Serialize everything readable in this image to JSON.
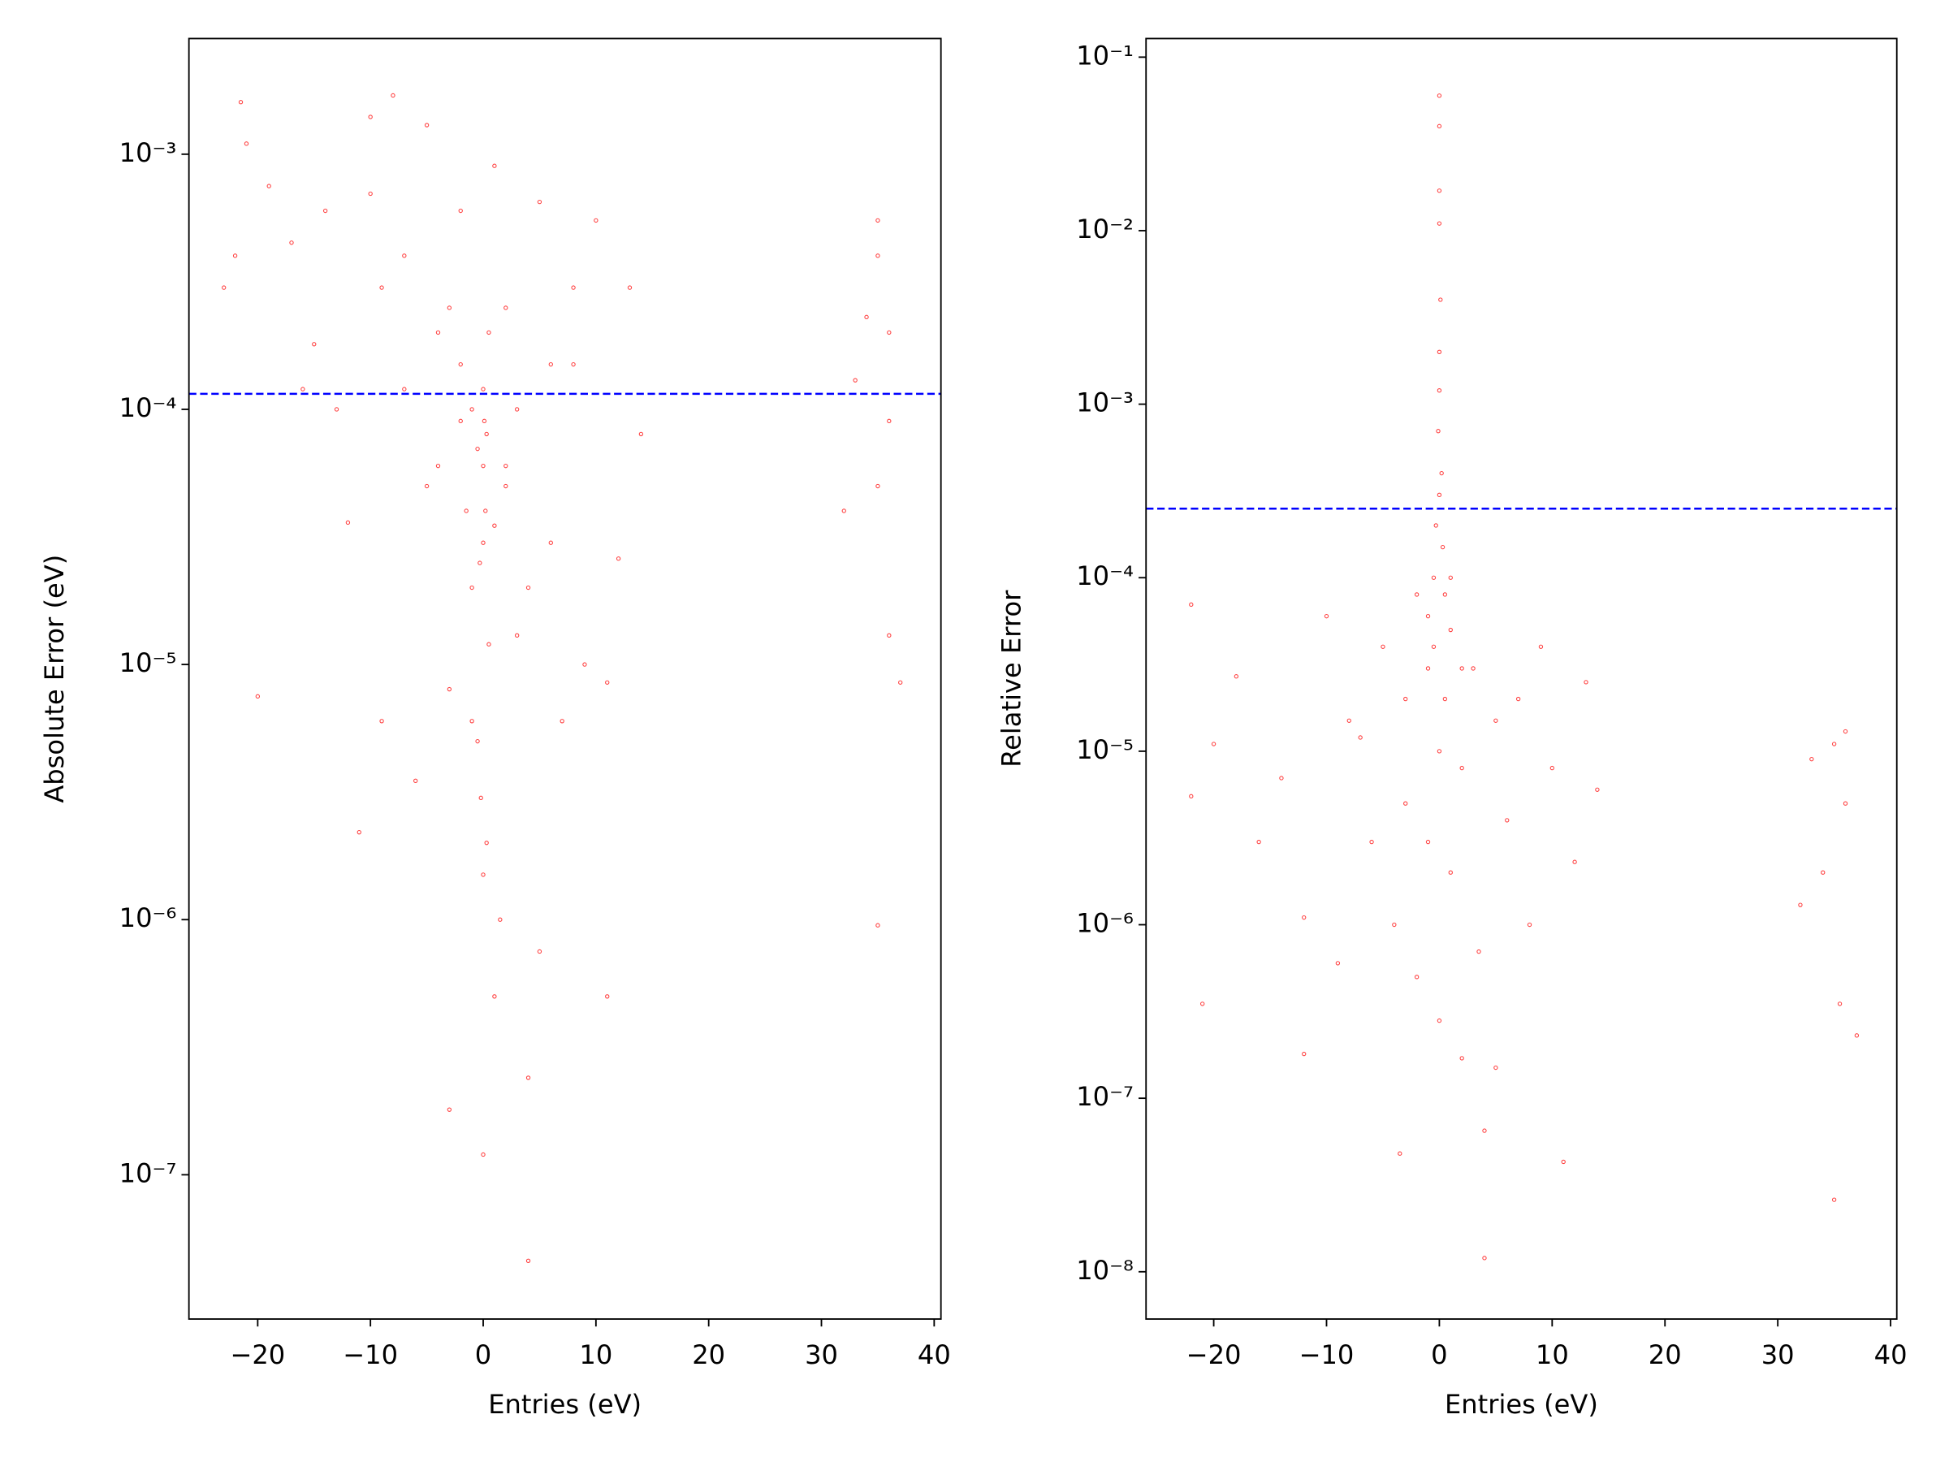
{
  "chart_data": [
    {
      "type": "scatter",
      "xlabel": "Entries (eV)",
      "ylabel": "Absolute Error (eV)",
      "log_y": true,
      "xlim": [
        -26.1,
        40.6
      ],
      "ylim": [
        2.72e-08,
        0.00284
      ],
      "xticks": [
        {
          "value": -20,
          "label": "−20"
        },
        {
          "value": -10,
          "label": "−10"
        },
        0,
        10,
        20,
        30,
        40
      ],
      "yticks": [
        {
          "value": 1e-07,
          "label": "10⁻⁷"
        },
        {
          "value": 1e-06,
          "label": "10⁻⁶"
        },
        {
          "value": 1e-05,
          "label": "10⁻⁵"
        },
        {
          "value": 0.0001,
          "label": "10⁻⁴"
        },
        {
          "value": 0.001,
          "label": "10⁻³"
        }
      ],
      "hline": 0.000115,
      "hline_color": "#0000ff",
      "series": [
        {
          "color": "#ff0000",
          "x": [
            -22,
            -21,
            -21.5,
            -19,
            -17,
            -15,
            -14,
            -13,
            -12,
            -11,
            -10,
            -9,
            -9,
            -8,
            -7,
            -6,
            -5,
            -5,
            -4,
            -3,
            -3,
            -2,
            -2,
            -1.5,
            -1,
            -1,
            -0.5,
            -0.5,
            0,
            0,
            0,
            0.3,
            0.5,
            1,
            1,
            1,
            1.5,
            2,
            2,
            3,
            4,
            4,
            5,
            5,
            6,
            7,
            8,
            9,
            10,
            11,
            11,
            12,
            13,
            14,
            -23,
            -20,
            -16,
            -10,
            -7,
            -3,
            -1,
            0.5,
            3,
            6,
            8,
            0,
            0.2,
            -0.3,
            0.1,
            0,
            -0.2,
            0.3,
            -2,
            2,
            -4,
            4,
            33,
            34,
            35,
            35,
            36,
            35,
            36,
            37,
            32,
            36,
            35
          ],
          "values": [
            0.0004,
            0.0011,
            0.0016,
            0.00075,
            0.00045,
            0.00018,
            0.0006,
            0.0001,
            3.6e-05,
            2.2e-06,
            0.0014,
            6e-06,
            0.0003,
            0.0017,
            0.00012,
            3.5e-06,
            0.0013,
            5e-05,
            0.0002,
            1.8e-07,
            8e-06,
            0.0006,
            0.00015,
            4e-05,
            0.0001,
            2e-05,
            7e-05,
            5e-06,
            3e-05,
            1.2e-07,
            1.5e-06,
            8e-05,
            1.2e-05,
            0.0009,
            3.5e-05,
            5e-07,
            1e-06,
            0.00025,
            6e-05,
            1.3e-05,
            4.6e-08,
            2.4e-07,
            0.00065,
            7.5e-07,
            0.00015,
            6e-06,
            0.0003,
            1e-05,
            0.00055,
            8.5e-06,
            5e-07,
            2.6e-05,
            0.0003,
            8e-05,
            0.0003,
            7.5e-06,
            0.00012,
            0.0007,
            0.0004,
            0.00025,
            6e-06,
            0.0002,
            0.0001,
            3e-05,
            0.00015,
            6e-05,
            4e-05,
            2.5e-05,
            9e-05,
            0.00012,
            3e-06,
            2e-06,
            9e-05,
            5e-05,
            6e-05,
            2e-05,
            0.00013,
            0.00023,
            0.00055,
            0.0004,
            9e-05,
            9.5e-07,
            1.3e-05,
            8.5e-06,
            4e-05,
            0.0002,
            5e-05
          ]
        }
      ]
    },
    {
      "type": "scatter",
      "xlabel": "Entries (eV)",
      "ylabel": "Relative Error",
      "log_y": true,
      "xlim": [
        -26.0,
        40.55
      ],
      "ylim": [
        5.34e-09,
        0.128
      ],
      "xticks": [
        {
          "value": -20,
          "label": "−20"
        },
        {
          "value": -10,
          "label": "−10"
        },
        0,
        10,
        20,
        30,
        40
      ],
      "yticks": [
        {
          "value": 1e-08,
          "label": "10⁻⁸"
        },
        {
          "value": 1e-07,
          "label": "10⁻⁷"
        },
        {
          "value": 1e-06,
          "label": "10⁻⁶"
        },
        {
          "value": 1e-05,
          "label": "10⁻⁵"
        },
        {
          "value": 0.0001,
          "label": "10⁻⁴"
        },
        {
          "value": 0.001,
          "label": "10⁻³"
        },
        {
          "value": 0.01,
          "label": "10⁻²"
        },
        {
          "value": 0.1,
          "label": "10⁻¹"
        }
      ],
      "hline": 0.00025,
      "hline_color": "#0000ff",
      "series": [
        {
          "color": "#ff0000",
          "x": [
            0,
            0,
            0,
            0,
            0.1,
            0,
            0,
            -0.1,
            0.2,
            0,
            -0.3,
            0.3,
            -0.5,
            0.5,
            -22,
            -22,
            -21,
            -20,
            -18,
            -16,
            -14,
            -12,
            -12,
            -10,
            -9,
            -8,
            -6,
            -5,
            -4,
            -3.5,
            -3,
            -2,
            -2,
            -1,
            -1,
            0,
            0,
            1,
            1,
            2,
            2,
            3,
            3.5,
            4,
            4,
            5,
            5,
            6,
            7,
            8,
            9,
            10,
            11,
            12,
            13,
            14,
            -7,
            -3,
            1,
            -1,
            2,
            0.5,
            -0.5,
            32,
            33,
            34,
            35,
            35,
            35.5,
            36,
            37,
            36
          ],
          "values": [
            0.06,
            0.04,
            0.017,
            0.011,
            0.004,
            0.002,
            0.0012,
            0.0007,
            0.0004,
            0.0003,
            0.0002,
            0.00015,
            0.0001,
            8e-05,
            7e-05,
            5.5e-06,
            3.5e-07,
            1.1e-05,
            2.7e-05,
            3e-06,
            7e-06,
            1.8e-07,
            1.1e-06,
            6e-05,
            6e-07,
            1.5e-05,
            3e-06,
            4e-05,
            1e-06,
            4.8e-08,
            2e-05,
            5e-07,
            8e-05,
            3e-06,
            3e-05,
            2.8e-07,
            1e-05,
            2e-06,
            5e-05,
            1.7e-07,
            8e-06,
            3e-05,
            7e-07,
            6.5e-08,
            1.2e-08,
            1.5e-07,
            1.5e-05,
            4e-06,
            2e-05,
            1e-06,
            4e-05,
            8e-06,
            4.3e-08,
            2.3e-06,
            2.5e-05,
            6e-06,
            1.2e-05,
            5e-06,
            0.0001,
            6e-05,
            3e-05,
            2e-05,
            4e-05,
            1.3e-06,
            9e-06,
            2e-06,
            1.1e-05,
            2.6e-08,
            3.5e-07,
            5e-06,
            2.3e-07,
            1.3e-05
          ]
        }
      ]
    }
  ]
}
